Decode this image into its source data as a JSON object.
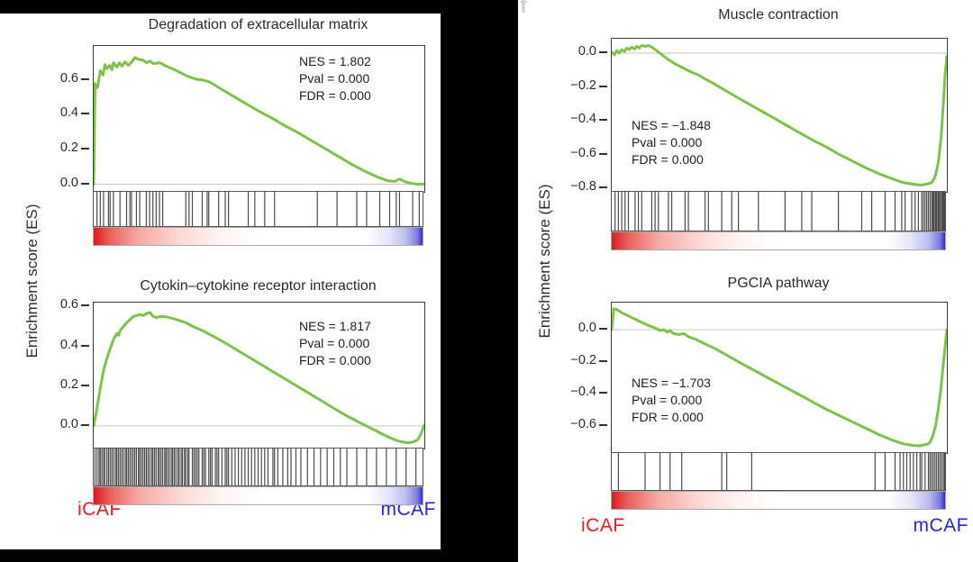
{
  "colors": {
    "background": "#000000",
    "curve": "#7fc24a",
    "icaf_red": "#ed1c1c",
    "mcaf_blue": "#2727d8",
    "zero_line": "#c6c6c6",
    "hit_tick": "#4a4a4a",
    "gradient_red": "#dd1a21",
    "gradient_blue": "#2e2ec6",
    "panel_letter": "#cfcfcf"
  },
  "left_figure": {
    "y_axis_label": "Enrichment score (ES)",
    "group_labels": {
      "left": "iCAF",
      "right": "mCAF"
    }
  },
  "right_figure": {
    "panel_letter": "f",
    "y_axis_label": "Enrichment score (ES)",
    "group_labels": {
      "left": "iCAF",
      "right": "mCAF"
    }
  },
  "chart_data": [
    {
      "type": "line",
      "title": "Degradation of extracellular matrix",
      "stats": {
        "nes": "NES = 1.802",
        "pval": "Pval = 0.000",
        "fdr": "FDR = 0.000"
      },
      "ylabel": "Enrichment score (ES)",
      "x_left_label": "iCAF",
      "x_right_label": "mCAF",
      "ylim": [
        -0.044,
        0.797
      ],
      "yticks": [
        [
          "0.6",
          0.6
        ],
        [
          "0.4",
          0.4
        ],
        [
          "0.2",
          0.2
        ],
        [
          "0.0",
          0.0
        ]
      ],
      "es_curve": [
        [
          0,
          0
        ],
        [
          0.004,
          0.58
        ],
        [
          0.008,
          0.555
        ],
        [
          0.012,
          0.56
        ],
        [
          0.02,
          0.655
        ],
        [
          0.028,
          0.63
        ],
        [
          0.034,
          0.69
        ],
        [
          0.04,
          0.665
        ],
        [
          0.048,
          0.685
        ],
        [
          0.055,
          0.66
        ],
        [
          0.06,
          0.7
        ],
        [
          0.07,
          0.675
        ],
        [
          0.078,
          0.7
        ],
        [
          0.085,
          0.68
        ],
        [
          0.095,
          0.705
        ],
        [
          0.105,
          0.685
        ],
        [
          0.115,
          0.705
        ],
        [
          0.125,
          0.73
        ],
        [
          0.135,
          0.72
        ],
        [
          0.15,
          0.715
        ],
        [
          0.16,
          0.7
        ],
        [
          0.17,
          0.71
        ],
        [
          0.18,
          0.695
        ],
        [
          0.2,
          0.7
        ],
        [
          0.22,
          0.68
        ],
        [
          0.25,
          0.655
        ],
        [
          0.28,
          0.625
        ],
        [
          0.31,
          0.605
        ],
        [
          0.33,
          0.6
        ],
        [
          0.35,
          0.59
        ],
        [
          0.38,
          0.555
        ],
        [
          0.42,
          0.51
        ],
        [
          0.46,
          0.465
        ],
        [
          0.5,
          0.42
        ],
        [
          0.54,
          0.38
        ],
        [
          0.58,
          0.335
        ],
        [
          0.62,
          0.295
        ],
        [
          0.66,
          0.25
        ],
        [
          0.7,
          0.205
        ],
        [
          0.74,
          0.16
        ],
        [
          0.78,
          0.115
        ],
        [
          0.82,
          0.075
        ],
        [
          0.86,
          0.04
        ],
        [
          0.89,
          0.02
        ],
        [
          0.91,
          0.015
        ],
        [
          0.925,
          0.03
        ],
        [
          0.94,
          0.015
        ],
        [
          0.96,
          0.005
        ],
        [
          0.98,
          0.0
        ],
        [
          1,
          0.0
        ]
      ],
      "hit_positions": [
        0.01,
        0.02,
        0.03,
        0.045,
        0.05,
        0.06,
        0.08,
        0.1,
        0.11,
        0.115,
        0.13,
        0.14,
        0.16,
        0.17,
        0.18,
        0.19,
        0.2,
        0.21,
        0.28,
        0.29,
        0.3,
        0.33,
        0.345,
        0.35,
        0.38,
        0.4,
        0.41,
        0.47,
        0.49,
        0.52,
        0.55,
        0.68,
        0.74,
        0.8,
        0.83,
        0.87,
        0.9,
        0.92,
        0.93,
        0.97,
        0.99
      ]
    },
    {
      "type": "line",
      "title": "Cytokin–cytokine receptor interaction",
      "stats": {
        "nes": "NES = 1.817",
        "pval": "Pval = 0.000",
        "fdr": "FDR = 0.000"
      },
      "ylabel": "Enrichment score (ES)",
      "x_left_label": "iCAF",
      "x_right_label": "mCAF",
      "ylim": [
        -0.114,
        0.62
      ],
      "yticks": [
        [
          "0.6",
          0.6
        ],
        [
          "0.4",
          0.4
        ],
        [
          "0.2",
          0.2
        ],
        [
          "0.0",
          0.0
        ]
      ],
      "es_curve": [
        [
          0,
          0
        ],
        [
          0.01,
          0.09
        ],
        [
          0.02,
          0.19
        ],
        [
          0.03,
          0.28
        ],
        [
          0.04,
          0.34
        ],
        [
          0.05,
          0.39
        ],
        [
          0.06,
          0.435
        ],
        [
          0.07,
          0.465
        ],
        [
          0.075,
          0.455
        ],
        [
          0.08,
          0.48
        ],
        [
          0.09,
          0.5
        ],
        [
          0.1,
          0.52
        ],
        [
          0.11,
          0.535
        ],
        [
          0.12,
          0.55
        ],
        [
          0.13,
          0.555
        ],
        [
          0.14,
          0.56
        ],
        [
          0.15,
          0.555
        ],
        [
          0.16,
          0.565
        ],
        [
          0.17,
          0.57
        ],
        [
          0.18,
          0.55
        ],
        [
          0.19,
          0.545
        ],
        [
          0.2,
          0.55
        ],
        [
          0.22,
          0.548
        ],
        [
          0.24,
          0.54
        ],
        [
          0.26,
          0.53
        ],
        [
          0.28,
          0.518
        ],
        [
          0.3,
          0.5
        ],
        [
          0.33,
          0.478
        ],
        [
          0.36,
          0.452
        ],
        [
          0.4,
          0.415
        ],
        [
          0.44,
          0.375
        ],
        [
          0.48,
          0.335
        ],
        [
          0.52,
          0.295
        ],
        [
          0.56,
          0.255
        ],
        [
          0.6,
          0.215
        ],
        [
          0.64,
          0.175
        ],
        [
          0.68,
          0.135
        ],
        [
          0.72,
          0.095
        ],
        [
          0.76,
          0.055
        ],
        [
          0.8,
          0.02
        ],
        [
          0.83,
          -0.005
        ],
        [
          0.86,
          -0.03
        ],
        [
          0.89,
          -0.055
        ],
        [
          0.91,
          -0.07
        ],
        [
          0.93,
          -0.08
        ],
        [
          0.95,
          -0.085
        ],
        [
          0.965,
          -0.082
        ],
        [
          0.98,
          -0.07
        ],
        [
          0.99,
          -0.04
        ],
        [
          1,
          0.005
        ]
      ],
      "hit_positions": [
        0.004,
        0.01,
        0.016,
        0.02,
        0.025,
        0.03,
        0.034,
        0.04,
        0.045,
        0.05,
        0.055,
        0.06,
        0.066,
        0.07,
        0.075,
        0.08,
        0.085,
        0.09,
        0.096,
        0.1,
        0.105,
        0.11,
        0.115,
        0.12,
        0.125,
        0.13,
        0.136,
        0.14,
        0.145,
        0.15,
        0.155,
        0.16,
        0.165,
        0.17,
        0.176,
        0.18,
        0.185,
        0.19,
        0.196,
        0.2,
        0.205,
        0.21,
        0.216,
        0.22,
        0.225,
        0.23,
        0.236,
        0.24,
        0.245,
        0.25,
        0.256,
        0.26,
        0.266,
        0.27,
        0.276,
        0.28,
        0.286,
        0.29,
        0.3,
        0.305,
        0.31,
        0.315,
        0.32,
        0.33,
        0.335,
        0.34,
        0.35,
        0.355,
        0.36,
        0.37,
        0.375,
        0.38,
        0.39,
        0.4,
        0.405,
        0.41,
        0.42,
        0.43,
        0.44,
        0.45,
        0.46,
        0.47,
        0.48,
        0.49,
        0.5,
        0.51,
        0.52,
        0.53,
        0.545,
        0.55,
        0.56,
        0.575,
        0.59,
        0.6,
        0.615,
        0.63,
        0.65,
        0.67,
        0.69,
        0.71,
        0.73,
        0.75,
        0.77,
        0.8,
        0.83,
        0.86,
        0.89,
        0.92,
        0.95,
        0.98
      ]
    },
    {
      "type": "line",
      "title": "Muscle contraction",
      "stats": {
        "nes": "NES = −1.848",
        "pval": "Pval = 0.000",
        "fdr": "FDR = 0.000"
      },
      "ylabel": "Enrichment score (ES)",
      "x_left_label": "iCAF",
      "x_right_label": "mCAF",
      "ylim": [
        -0.82,
        0.085
      ],
      "yticks": [
        [
          "0.0",
          0.0
        ],
        [
          "−0.2",
          -0.2
        ],
        [
          "−0.4",
          -0.4
        ],
        [
          "−0.6",
          -0.6
        ],
        [
          "−0.8",
          -0.8
        ]
      ],
      "es_curve": [
        [
          0,
          0.005
        ],
        [
          0.008,
          -0.01
        ],
        [
          0.015,
          0.015
        ],
        [
          0.022,
          0.0
        ],
        [
          0.03,
          0.02
        ],
        [
          0.038,
          0.01
        ],
        [
          0.045,
          0.03
        ],
        [
          0.052,
          0.02
        ],
        [
          0.06,
          0.035
        ],
        [
          0.068,
          0.025
        ],
        [
          0.075,
          0.04
        ],
        [
          0.082,
          0.03
        ],
        [
          0.09,
          0.045
        ],
        [
          0.1,
          0.04
        ],
        [
          0.11,
          0.045
        ],
        [
          0.12,
          0.035
        ],
        [
          0.13,
          0.02
        ],
        [
          0.15,
          -0.01
        ],
        [
          0.17,
          -0.04
        ],
        [
          0.19,
          -0.065
        ],
        [
          0.21,
          -0.085
        ],
        [
          0.24,
          -0.115
        ],
        [
          0.26,
          -0.13
        ],
        [
          0.28,
          -0.155
        ],
        [
          0.3,
          -0.175
        ],
        [
          0.33,
          -0.21
        ],
        [
          0.36,
          -0.245
        ],
        [
          0.4,
          -0.29
        ],
        [
          0.44,
          -0.335
        ],
        [
          0.48,
          -0.38
        ],
        [
          0.52,
          -0.425
        ],
        [
          0.56,
          -0.47
        ],
        [
          0.6,
          -0.515
        ],
        [
          0.64,
          -0.555
        ],
        [
          0.68,
          -0.6
        ],
        [
          0.72,
          -0.64
        ],
        [
          0.76,
          -0.68
        ],
        [
          0.8,
          -0.715
        ],
        [
          0.84,
          -0.745
        ],
        [
          0.87,
          -0.765
        ],
        [
          0.9,
          -0.775
        ],
        [
          0.92,
          -0.78
        ],
        [
          0.94,
          -0.775
        ],
        [
          0.955,
          -0.765
        ],
        [
          0.965,
          -0.73
        ],
        [
          0.975,
          -0.64
        ],
        [
          0.983,
          -0.49
        ],
        [
          0.99,
          -0.28
        ],
        [
          0.995,
          -0.12
        ],
        [
          1,
          -0.02
        ]
      ],
      "hit_positions": [
        0.01,
        0.02,
        0.03,
        0.04,
        0.05,
        0.07,
        0.08,
        0.09,
        0.12,
        0.13,
        0.14,
        0.17,
        0.18,
        0.22,
        0.23,
        0.28,
        0.29,
        0.33,
        0.36,
        0.38,
        0.44,
        0.52,
        0.57,
        0.6,
        0.68,
        0.75,
        0.78,
        0.82,
        0.85,
        0.87,
        0.88,
        0.9,
        0.91,
        0.92,
        0.93,
        0.935,
        0.94,
        0.945,
        0.95,
        0.955,
        0.96,
        0.963,
        0.966,
        0.97,
        0.973,
        0.976,
        0.98,
        0.983,
        0.986,
        0.99,
        0.993,
        0.996,
        1.0
      ]
    },
    {
      "type": "line",
      "title": "PGCIA pathway",
      "stats": {
        "nes": "NES = −1.703",
        "pval": "Pval = 0.000",
        "fdr": "FDR = 0.000"
      },
      "ylabel": "Enrichment score (ES)",
      "x_left_label": "iCAF",
      "x_right_label": "mCAF",
      "ylim": [
        -0.767,
        0.168
      ],
      "yticks": [
        [
          "0.0",
          0.0
        ],
        [
          "−0.2",
          -0.2
        ],
        [
          "−0.4",
          -0.4
        ],
        [
          "−0.6",
          -0.6
        ]
      ],
      "es_curve": [
        [
          0,
          0
        ],
        [
          0.006,
          0.13
        ],
        [
          0.015,
          0.125
        ],
        [
          0.03,
          0.105
        ],
        [
          0.05,
          0.085
        ],
        [
          0.07,
          0.065
        ],
        [
          0.09,
          0.045
        ],
        [
          0.11,
          0.025
        ],
        [
          0.13,
          0.01
        ],
        [
          0.145,
          -0.005
        ],
        [
          0.155,
          0.0
        ],
        [
          0.165,
          -0.015
        ],
        [
          0.175,
          -0.008
        ],
        [
          0.185,
          -0.025
        ],
        [
          0.2,
          -0.03
        ],
        [
          0.215,
          -0.025
        ],
        [
          0.23,
          -0.045
        ],
        [
          0.25,
          -0.06
        ],
        [
          0.28,
          -0.09
        ],
        [
          0.31,
          -0.12
        ],
        [
          0.34,
          -0.155
        ],
        [
          0.37,
          -0.19
        ],
        [
          0.4,
          -0.225
        ],
        [
          0.44,
          -0.27
        ],
        [
          0.48,
          -0.315
        ],
        [
          0.52,
          -0.36
        ],
        [
          0.56,
          -0.405
        ],
        [
          0.6,
          -0.45
        ],
        [
          0.64,
          -0.495
        ],
        [
          0.68,
          -0.535
        ],
        [
          0.72,
          -0.575
        ],
        [
          0.76,
          -0.615
        ],
        [
          0.8,
          -0.655
        ],
        [
          0.84,
          -0.69
        ],
        [
          0.87,
          -0.71
        ],
        [
          0.9,
          -0.72
        ],
        [
          0.92,
          -0.722
        ],
        [
          0.935,
          -0.715
        ],
        [
          0.945,
          -0.71
        ],
        [
          0.95,
          -0.7
        ],
        [
          0.958,
          -0.66
        ],
        [
          0.966,
          -0.6
        ],
        [
          0.974,
          -0.5
        ],
        [
          0.982,
          -0.37
        ],
        [
          0.99,
          -0.2
        ],
        [
          1,
          0.0
        ]
      ],
      "hit_positions": [
        0.02,
        0.1,
        0.145,
        0.175,
        0.21,
        0.33,
        0.345,
        0.42,
        0.79,
        0.82,
        0.85,
        0.865,
        0.875,
        0.885,
        0.895,
        0.905,
        0.915,
        0.925,
        0.93,
        0.94,
        0.95,
        0.955,
        0.96,
        0.965,
        0.97,
        0.975,
        0.98,
        0.985,
        0.99,
        0.995,
        1.0
      ]
    }
  ]
}
